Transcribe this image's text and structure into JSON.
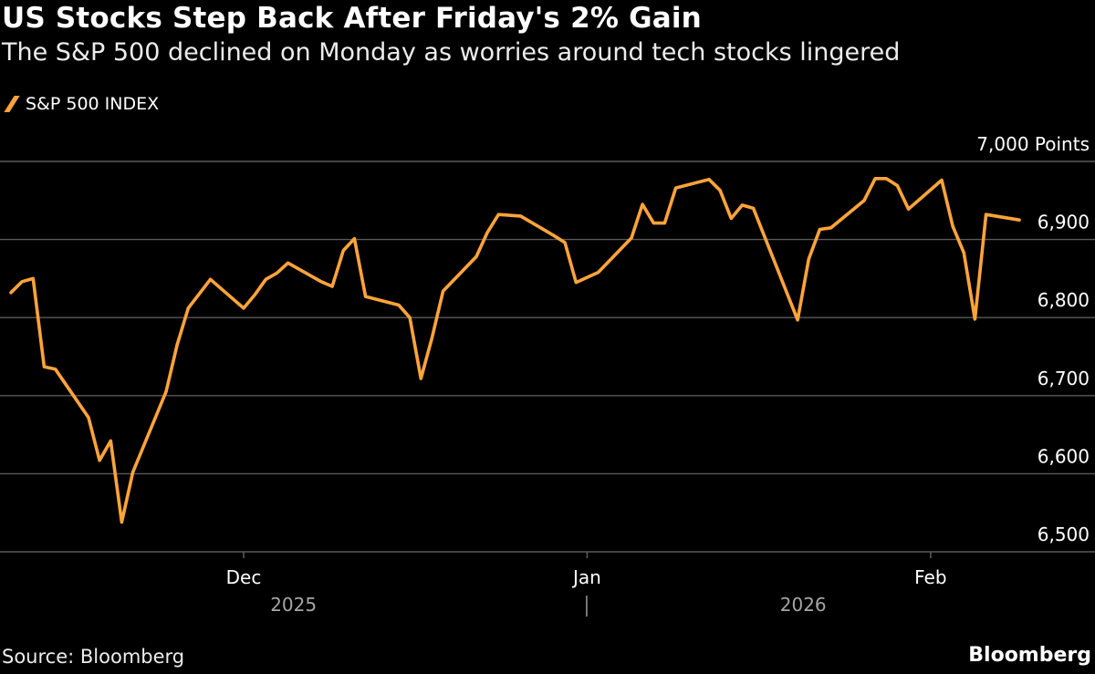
{
  "title": "US Stocks Step Back After Friday's 2% Gain",
  "subtitle": "The S&P 500 declined on Monday as worries around tech stocks lingered",
  "source": "Source: Bloomberg",
  "brand": "Bloomberg",
  "colors": {
    "line": "#ffa43a",
    "grid": "#5a5a5a",
    "text": "#ffffff",
    "muted": "#a6a6a6",
    "background": "#000000"
  },
  "chart_data": {
    "type": "line",
    "ylim": [
      6500,
      7000
    ],
    "yticks": [
      6500,
      6600,
      6700,
      6800,
      6900,
      7000
    ],
    "ytick_labels": [
      "6,500",
      "6,600",
      "6,700",
      "6,800",
      "6,900",
      "7,000 Points"
    ],
    "grid": true,
    "legend_position": "top-left",
    "x_range": [
      "2025-11-10",
      "2026-02-09"
    ],
    "x_ticks": [
      {
        "date": "2025-12-01",
        "label": "Dec"
      },
      {
        "date": "2026-01-01",
        "label": "Jan"
      },
      {
        "date": "2026-02-01",
        "label": "Feb"
      }
    ],
    "year_labels": [
      {
        "label": "2025",
        "from": "2025-11-10",
        "to": "2025-12-31"
      },
      {
        "label": "2026",
        "from": "2026-01-01",
        "to": "2026-02-09"
      }
    ],
    "series": [
      {
        "name": "S&P 500 INDEX",
        "x": [
          "2025-11-10",
          "2025-11-11",
          "2025-11-12",
          "2025-11-13",
          "2025-11-14",
          "2025-11-17",
          "2025-11-18",
          "2025-11-19",
          "2025-11-20",
          "2025-11-21",
          "2025-11-24",
          "2025-11-25",
          "2025-11-26",
          "2025-11-28",
          "2025-12-01",
          "2025-12-02",
          "2025-12-03",
          "2025-12-04",
          "2025-12-05",
          "2025-12-08",
          "2025-12-09",
          "2025-12-10",
          "2025-12-11",
          "2025-12-12",
          "2025-12-15",
          "2025-12-16",
          "2025-12-17",
          "2025-12-18",
          "2025-12-19",
          "2025-12-22",
          "2025-12-23",
          "2025-12-24",
          "2025-12-26",
          "2025-12-29",
          "2025-12-30",
          "2025-12-31",
          "2026-01-02",
          "2026-01-05",
          "2026-01-06",
          "2026-01-07",
          "2026-01-08",
          "2026-01-09",
          "2026-01-12",
          "2026-01-13",
          "2026-01-14",
          "2026-01-15",
          "2026-01-16",
          "2026-01-20",
          "2026-01-21",
          "2026-01-22",
          "2026-01-23",
          "2026-01-26",
          "2026-01-27",
          "2026-01-28",
          "2026-01-29",
          "2026-01-30",
          "2026-02-02",
          "2026-02-03",
          "2026-02-04",
          "2026-02-05",
          "2026-02-06",
          "2026-02-09"
        ],
        "values": [
          6832,
          6846,
          6850,
          6737,
          6734,
          6672,
          6617,
          6642,
          6538,
          6602,
          6705,
          6765,
          6812,
          6849,
          6812,
          6829,
          6849,
          6857,
          6870,
          6846,
          6840,
          6886,
          6901,
          6827,
          6816,
          6800,
          6722,
          6774,
          6834,
          6878,
          6909,
          6932,
          6930,
          6905,
          6896,
          6845,
          6858,
          6902,
          6945,
          6921,
          6921,
          6966,
          6977,
          6963,
          6927,
          6944,
          6940,
          6797,
          6875,
          6913,
          6915,
          6950,
          6978,
          6978,
          6969,
          6939,
          6976,
          6917,
          6883,
          6798,
          6932,
          6925
        ]
      }
    ]
  }
}
